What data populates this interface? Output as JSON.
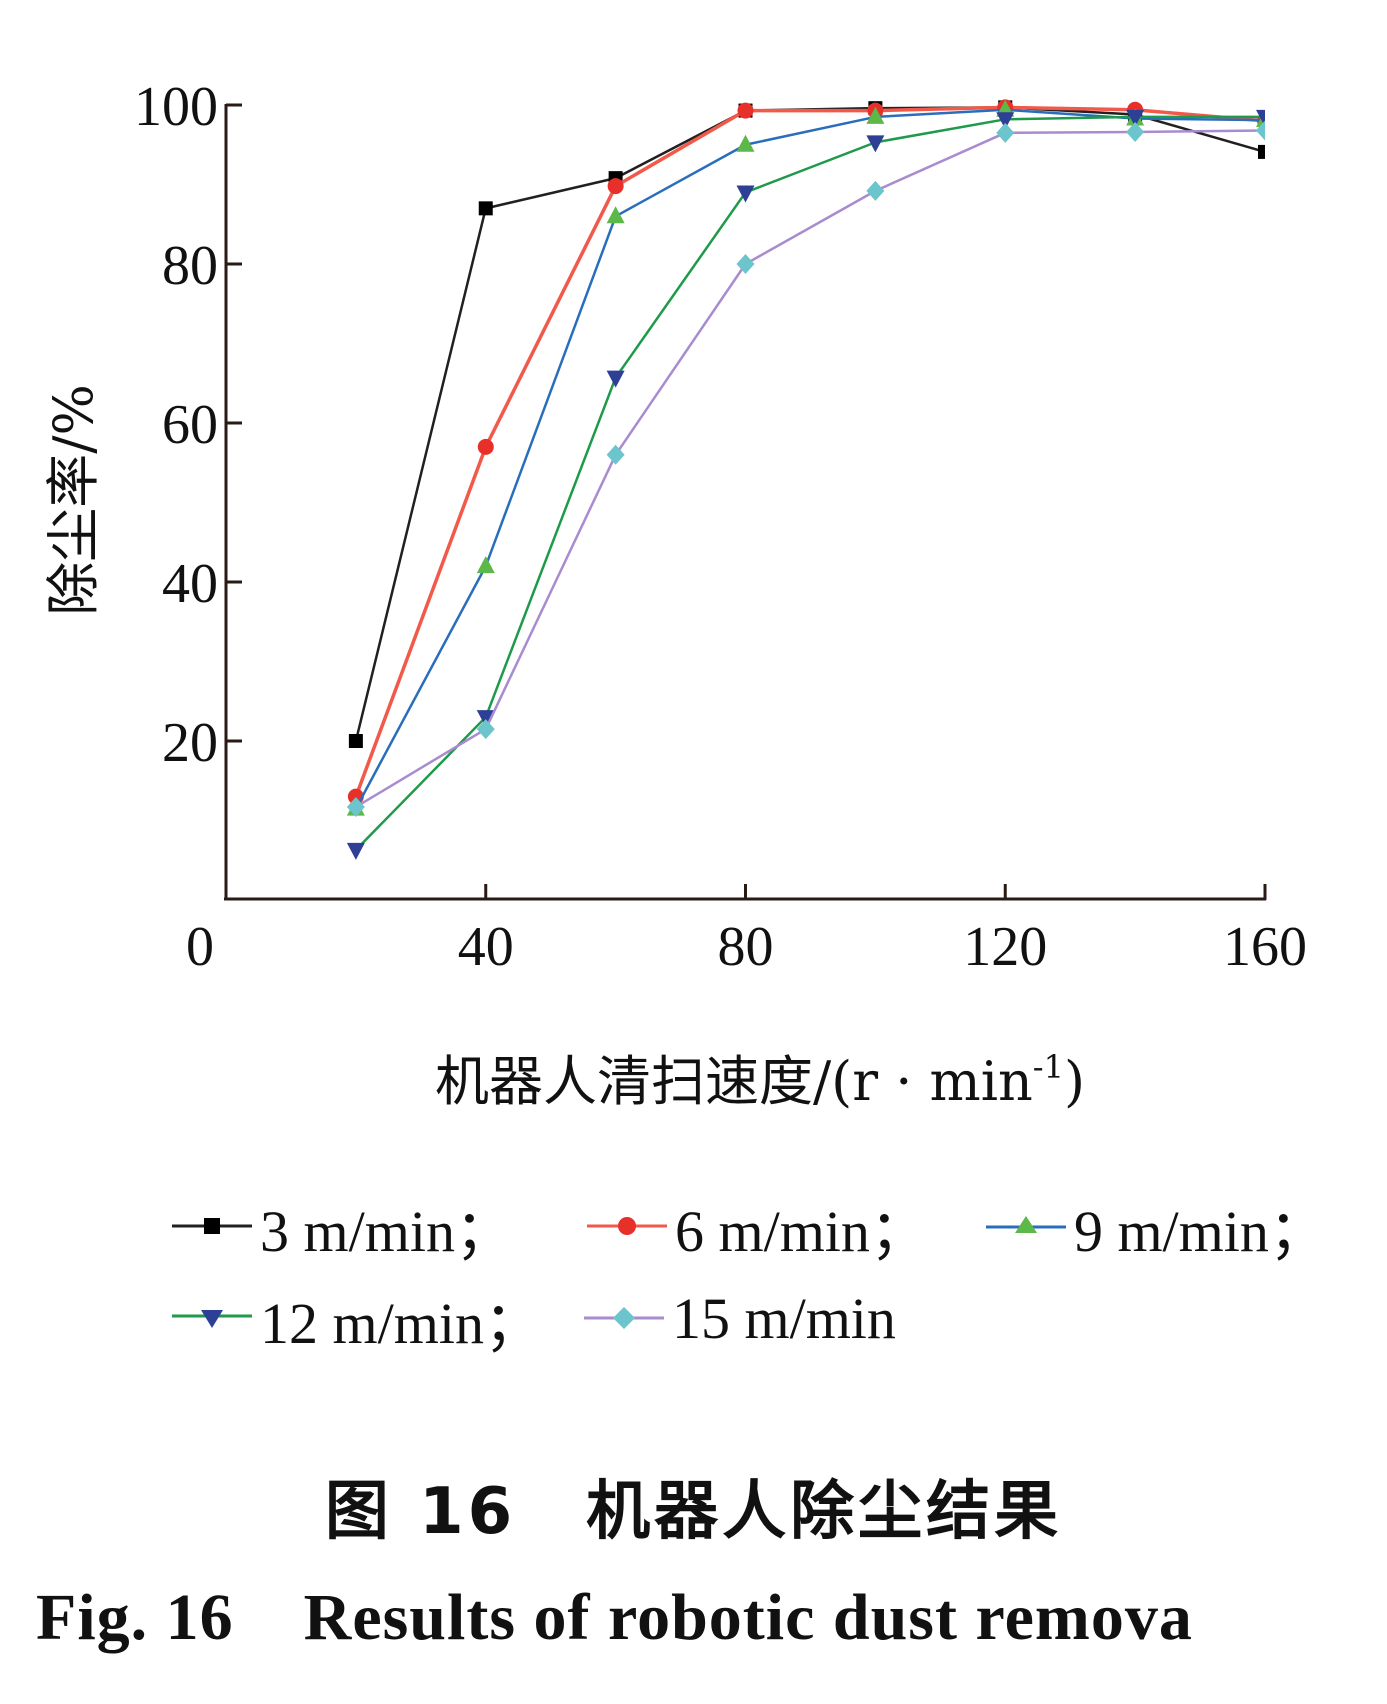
{
  "chart_data": {
    "type": "line",
    "title": "",
    "xlabel": "机器人清扫速度/(r · min⁻¹)",
    "ylabel": "除尘率/%",
    "x": [
      20,
      40,
      60,
      80,
      100,
      120,
      140,
      160
    ],
    "xlim": [
      0,
      160
    ],
    "ylim": [
      0,
      100
    ],
    "xticks": [
      0,
      40,
      80,
      120,
      160
    ],
    "yticks": [
      20,
      40,
      60,
      80,
      100
    ],
    "grid": false,
    "legend_position": "bottom",
    "series": [
      {
        "name": "3 m/min",
        "line_color": "#231f20",
        "marker": "square",
        "marker_color": "#000000",
        "values": [
          20,
          87,
          90.8,
          99.3,
          99.6,
          99.7,
          98.8,
          94.1
        ]
      },
      {
        "name": "6 m/min",
        "line_color": "#f15a4a",
        "marker": "circle",
        "marker_color": "#e8302a",
        "values": [
          13,
          57,
          89.8,
          99.3,
          99.3,
          99.7,
          99.4,
          98.0
        ]
      },
      {
        "name": "9 m/min",
        "line_color": "#2a6ebb",
        "marker": "triangle-up",
        "marker_color": "#5cb848",
        "values": [
          11.5,
          42,
          86,
          95,
          98.5,
          99.4,
          98.3,
          98.1
        ]
      },
      {
        "name": "12 m/min",
        "line_color": "#1e9a4a",
        "marker": "triangle-down",
        "marker_color": "#2e3f96",
        "values": [
          6.3,
          23,
          65.7,
          89,
          95.3,
          98.2,
          98.5,
          98.5
        ]
      },
      {
        "name": "15 m/min",
        "line_color": "#a98bd0",
        "marker": "diamond",
        "marker_color": "#6cc4cc",
        "values": [
          11.7,
          21.5,
          56,
          80,
          89.2,
          96.5,
          96.6,
          96.8
        ]
      }
    ]
  },
  "axes": {
    "x_tick_labels": [
      "0",
      "40",
      "80",
      "120",
      "160"
    ],
    "y_tick_labels": [
      "20",
      "40",
      "60",
      "80",
      "100"
    ],
    "x_title_main": "机器人清扫速度/(r · min",
    "x_title_sup": "-1",
    "x_title_close": ")",
    "y_title": "除尘率/%"
  },
  "legend": {
    "items": [
      {
        "label": "3 m/min；"
      },
      {
        "label": "6 m/min；"
      },
      {
        "label": "9 m/min；"
      },
      {
        "label": "12 m/min；"
      },
      {
        "label": "15 m/min"
      }
    ]
  },
  "caption": {
    "cn_num": "图 16",
    "cn_text": "机器人除尘结果",
    "en_num": "Fig.  16",
    "en_text": "Results of robotic dust remova"
  }
}
